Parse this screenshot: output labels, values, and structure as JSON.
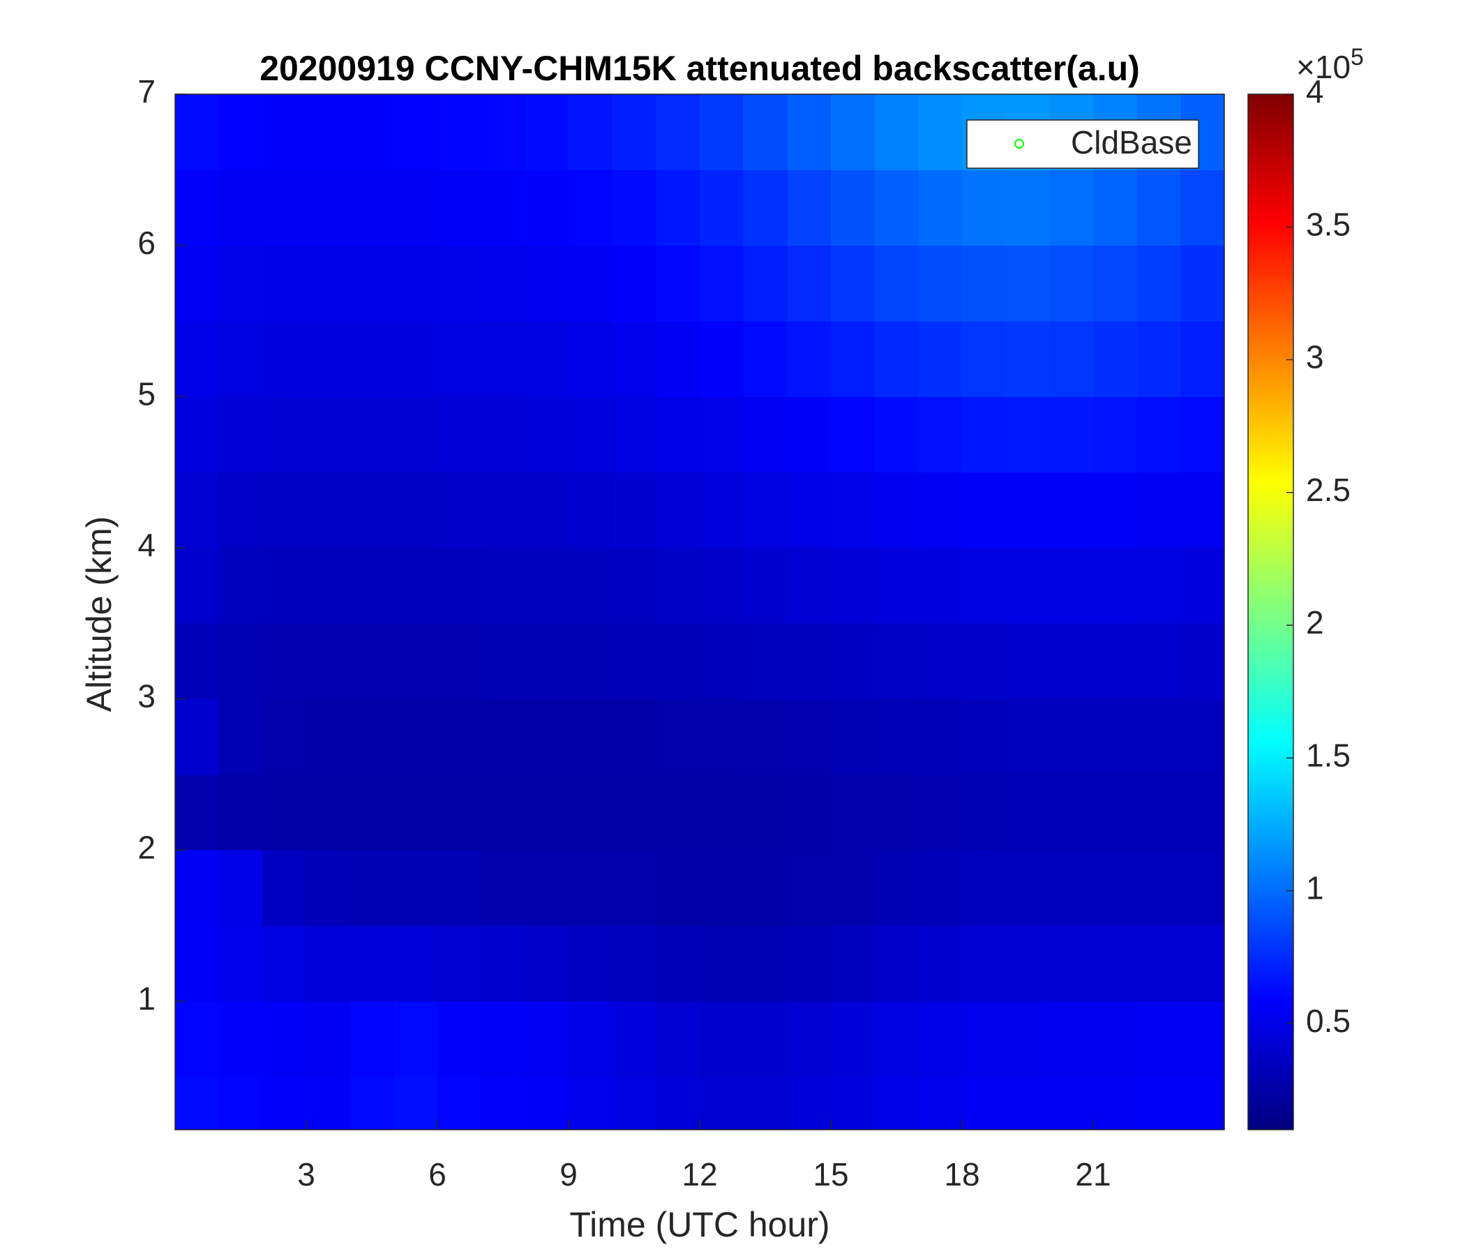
{
  "chart_data": {
    "type": "heatmap",
    "title": "20200919 CCNY-CHM15K attenuated backscatter(a.u)",
    "xlabel": "Time (UTC hour)",
    "ylabel": "Altitude (km)",
    "xlim": [
      0,
      24
    ],
    "xticks": [
      3,
      6,
      9,
      12,
      15,
      18,
      21
    ],
    "ylim": [
      0.15,
      7
    ],
    "yticks": [
      1,
      2,
      3,
      4,
      5,
      6,
      7
    ],
    "colormap": "jet",
    "clim": [
      10000,
      400000
    ],
    "cticks": [
      {
        "value": 50000,
        "label": "0.5"
      },
      {
        "value": 100000,
        "label": "1"
      },
      {
        "value": 150000,
        "label": "1.5"
      },
      {
        "value": 200000,
        "label": "2"
      },
      {
        "value": 250000,
        "label": "2.5"
      },
      {
        "value": 300000,
        "label": "3"
      },
      {
        "value": 350000,
        "label": "3.5"
      },
      {
        "value": 400000,
        "label": "4"
      }
    ],
    "cbar_multiplier": "×10",
    "cbar_exponent": "5",
    "legend": {
      "corner": "upper right",
      "entries": [
        {
          "name": "CldBase",
          "color": "#00ff00",
          "marker": "circle"
        }
      ]
    },
    "x": [
      0.5,
      1.5,
      2.5,
      3.5,
      4.5,
      5.5,
      6.5,
      7.5,
      8.5,
      9.5,
      10.5,
      11.5,
      12.5,
      13.5,
      14.5,
      15.5,
      16.5,
      17.5,
      18.5,
      19.5,
      20.5,
      21.5,
      22.5,
      23.5
    ],
    "y": [
      0.25,
      0.75,
      1.25,
      1.75,
      2.25,
      2.75,
      3.25,
      3.75,
      4.25,
      4.75,
      5.25,
      5.75,
      6.25,
      6.75
    ],
    "z": [
      [
        62000,
        60000,
        58000,
        56000,
        62000,
        64000,
        60000,
        58000,
        56000,
        52000,
        48000,
        44000,
        42000,
        42000,
        44000,
        46000,
        50000,
        52000,
        54000,
        54000,
        55000,
        55000,
        56000,
        56000
      ],
      [
        60000,
        58000,
        56000,
        54000,
        60000,
        62000,
        58000,
        56000,
        54000,
        50000,
        46000,
        42000,
        40000,
        40000,
        42000,
        44000,
        48000,
        50000,
        52000,
        52000,
        53000,
        53000,
        54000,
        54000
      ],
      [
        56000,
        52000,
        48000,
        44000,
        44000,
        44000,
        42000,
        40000,
        38000,
        36000,
        34000,
        32000,
        30000,
        30000,
        32000,
        34000,
        38000,
        40000,
        42000,
        42000,
        42000,
        42000,
        42000,
        42000
      ],
      [
        55000,
        50000,
        36000,
        32000,
        30000,
        30000,
        30000,
        28000,
        28000,
        27000,
        27000,
        26000,
        26000,
        26000,
        27000,
        28000,
        30000,
        32000,
        34000,
        34000,
        34000,
        34000,
        34000,
        34000
      ],
      [
        28000,
        26000,
        25000,
        25000,
        25000,
        25000,
        25000,
        25000,
        25000,
        25000,
        25000,
        25000,
        25000,
        25000,
        26000,
        27000,
        28000,
        29000,
        30000,
        31000,
        31000,
        31000,
        31000,
        31000
      ],
      [
        40000,
        30000,
        27000,
        26000,
        26000,
        26000,
        26000,
        26000,
        26000,
        26000,
        26000,
        27000,
        27000,
        28000,
        29000,
        30000,
        31000,
        32000,
        33000,
        34000,
        34000,
        34000,
        34000,
        34000
      ],
      [
        32000,
        30000,
        29000,
        29000,
        29000,
        29000,
        29000,
        30000,
        30000,
        30000,
        31000,
        32000,
        33000,
        34000,
        35000,
        36000,
        37000,
        38000,
        39000,
        40000,
        40000,
        40000,
        40000,
        39000
      ],
      [
        40000,
        35000,
        33000,
        33000,
        33000,
        33000,
        33000,
        34000,
        34000,
        35000,
        36000,
        37000,
        38000,
        40000,
        42000,
        43000,
        45000,
        46000,
        47000,
        48000,
        48000,
        48000,
        47000,
        46000
      ],
      [
        42000,
        38000,
        37000,
        37000,
        37000,
        37000,
        38000,
        38000,
        39000,
        40000,
        41000,
        43000,
        45000,
        47000,
        49000,
        51000,
        53000,
        55000,
        56000,
        57000,
        57000,
        56000,
        55000,
        54000
      ],
      [
        46000,
        43000,
        42000,
        42000,
        42000,
        42000,
        43000,
        43000,
        44000,
        45000,
        47000,
        49000,
        51000,
        54000,
        57000,
        60000,
        63000,
        65000,
        67000,
        68000,
        67000,
        66000,
        64000,
        62000
      ],
      [
        50000,
        47000,
        46000,
        46000,
        46000,
        46000,
        47000,
        47000,
        48000,
        50000,
        52000,
        55000,
        58000,
        62000,
        66000,
        70000,
        74000,
        77000,
        79000,
        80000,
        79000,
        77000,
        74000,
        70000
      ],
      [
        54000,
        51000,
        50000,
        50000,
        50000,
        50000,
        51000,
        52000,
        53000,
        55000,
        58000,
        61000,
        65000,
        70000,
        75000,
        80000,
        85000,
        88000,
        90000,
        91000,
        89000,
        86000,
        82000,
        77000
      ],
      [
        58000,
        55000,
        54000,
        54000,
        54000,
        55000,
        56000,
        57000,
        58000,
        60000,
        63000,
        67000,
        72000,
        78000,
        84000,
        90000,
        96000,
        100000,
        103000,
        104000,
        101000,
        97000,
        92000,
        86000
      ],
      [
        62000,
        59000,
        58000,
        58000,
        58000,
        59000,
        60000,
        61000,
        63000,
        66000,
        70000,
        75000,
        81000,
        88000,
        95000,
        102000,
        108000,
        113000,
        116000,
        117000,
        114000,
        109000,
        103000,
        96000
      ]
    ]
  }
}
